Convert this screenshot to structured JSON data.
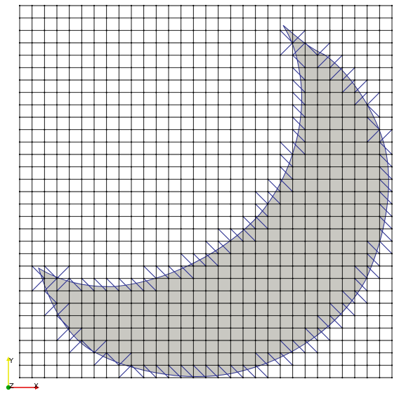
{
  "scene": {
    "background": "#ffffff",
    "grid_color": "#000000",
    "grid_cells": 30,
    "shape_fill": "#c9c8c2",
    "shape_edge": "#2a2f8f",
    "cut_cell_color": "#2a2f8f"
  },
  "orientation_axes": {
    "y_label": "Y",
    "z_label": "Z",
    "x_label": "X",
    "y_color": "#e8e800",
    "x_color": "#e00000",
    "z_color": "#00a000"
  }
}
